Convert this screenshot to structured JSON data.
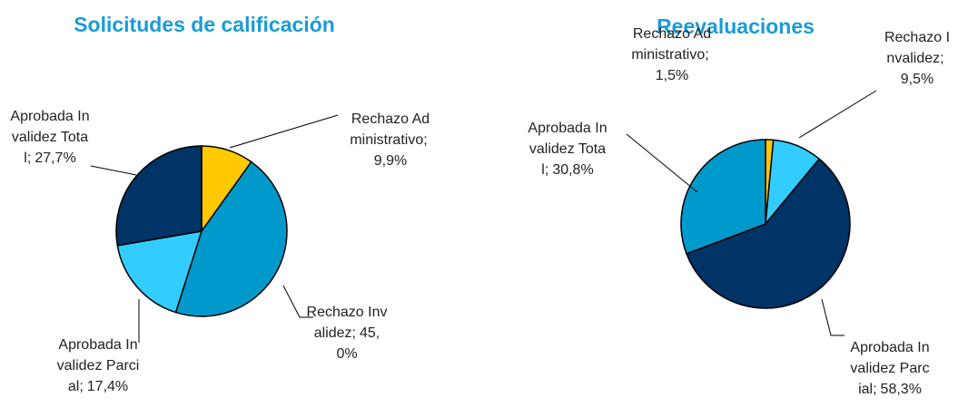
{
  "chart_data": [
    {
      "type": "pie",
      "title": "Solicitudes de calificación",
      "categories": [
        "Rechazo Administrativo",
        "Rechazo Invalidez",
        "Aprobada Invalidez Parcial",
        "Aprobada Invalidez Total"
      ],
      "values": [
        9.9,
        45.0,
        17.4,
        27.7
      ],
      "value_labels": [
        "9,9%",
        "45,0%",
        "17,4%",
        "27,7%"
      ],
      "colors": [
        "#ffc800",
        "#0099cc",
        "#33ccff",
        "#003366"
      ]
    },
    {
      "type": "pie",
      "title": "Reevaluaciones",
      "categories": [
        "Rechazo Administrativo",
        "Rechazo Invalidez",
        "Aprobada Invalidez Parcial",
        "Aprobada Invalidez Total"
      ],
      "values": [
        1.5,
        9.5,
        58.3,
        30.8
      ],
      "value_labels": [
        "1,5%",
        "9,5%",
        "58,3%",
        "30,8%"
      ],
      "colors": [
        "#ffc800",
        "#33ccff",
        "#003366",
        "#0099cc"
      ]
    }
  ]
}
